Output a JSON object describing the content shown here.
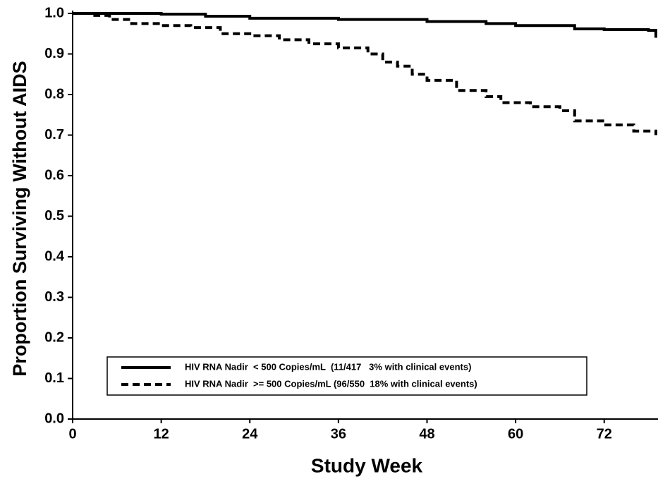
{
  "chart_data": {
    "type": "line",
    "step": "post",
    "xlabel": "Study Week",
    "ylabel": "Proportion Surviving Without AIDS",
    "xlim": [
      0,
      79
    ],
    "ylim": [
      0,
      1
    ],
    "xticks": [
      0,
      12,
      24,
      36,
      48,
      60,
      72
    ],
    "yticks": [
      {
        "value": 0,
        "label": "0.0"
      },
      0.1,
      0.2,
      0.3,
      0.4,
      0.5,
      0.6,
      0.7,
      0.8,
      0.9,
      {
        "value": 1,
        "label": "1.0"
      }
    ],
    "legend": "lower center",
    "series": [
      {
        "name": "HIV RNA Nadir  < 500 Copies/mL  (11/417   3% with clinical events)",
        "color": "#000000",
        "line_style": "solid",
        "x": [
          0,
          10,
          12,
          18,
          24,
          36,
          48,
          56,
          60,
          68,
          72,
          78,
          79
        ],
        "values": [
          1.0,
          1.0,
          0.998,
          0.993,
          0.988,
          0.985,
          0.98,
          0.975,
          0.97,
          0.962,
          0.96,
          0.958,
          0.94
        ]
      },
      {
        "name": "HIV RNA Nadir  >= 500 Copies/mL (96/550  18% with clinical events)",
        "color": "#000000",
        "line_style": "dashed",
        "x": [
          0,
          3,
          5,
          8,
          12,
          16,
          20,
          24,
          28,
          32,
          36,
          40,
          42,
          44,
          46,
          48,
          52,
          56,
          58,
          62,
          66,
          68,
          72,
          76,
          79
        ],
        "values": [
          1.0,
          0.995,
          0.985,
          0.975,
          0.97,
          0.965,
          0.95,
          0.945,
          0.935,
          0.925,
          0.915,
          0.9,
          0.88,
          0.87,
          0.85,
          0.835,
          0.81,
          0.795,
          0.78,
          0.77,
          0.76,
          0.735,
          0.725,
          0.71,
          0.7
        ]
      }
    ]
  }
}
